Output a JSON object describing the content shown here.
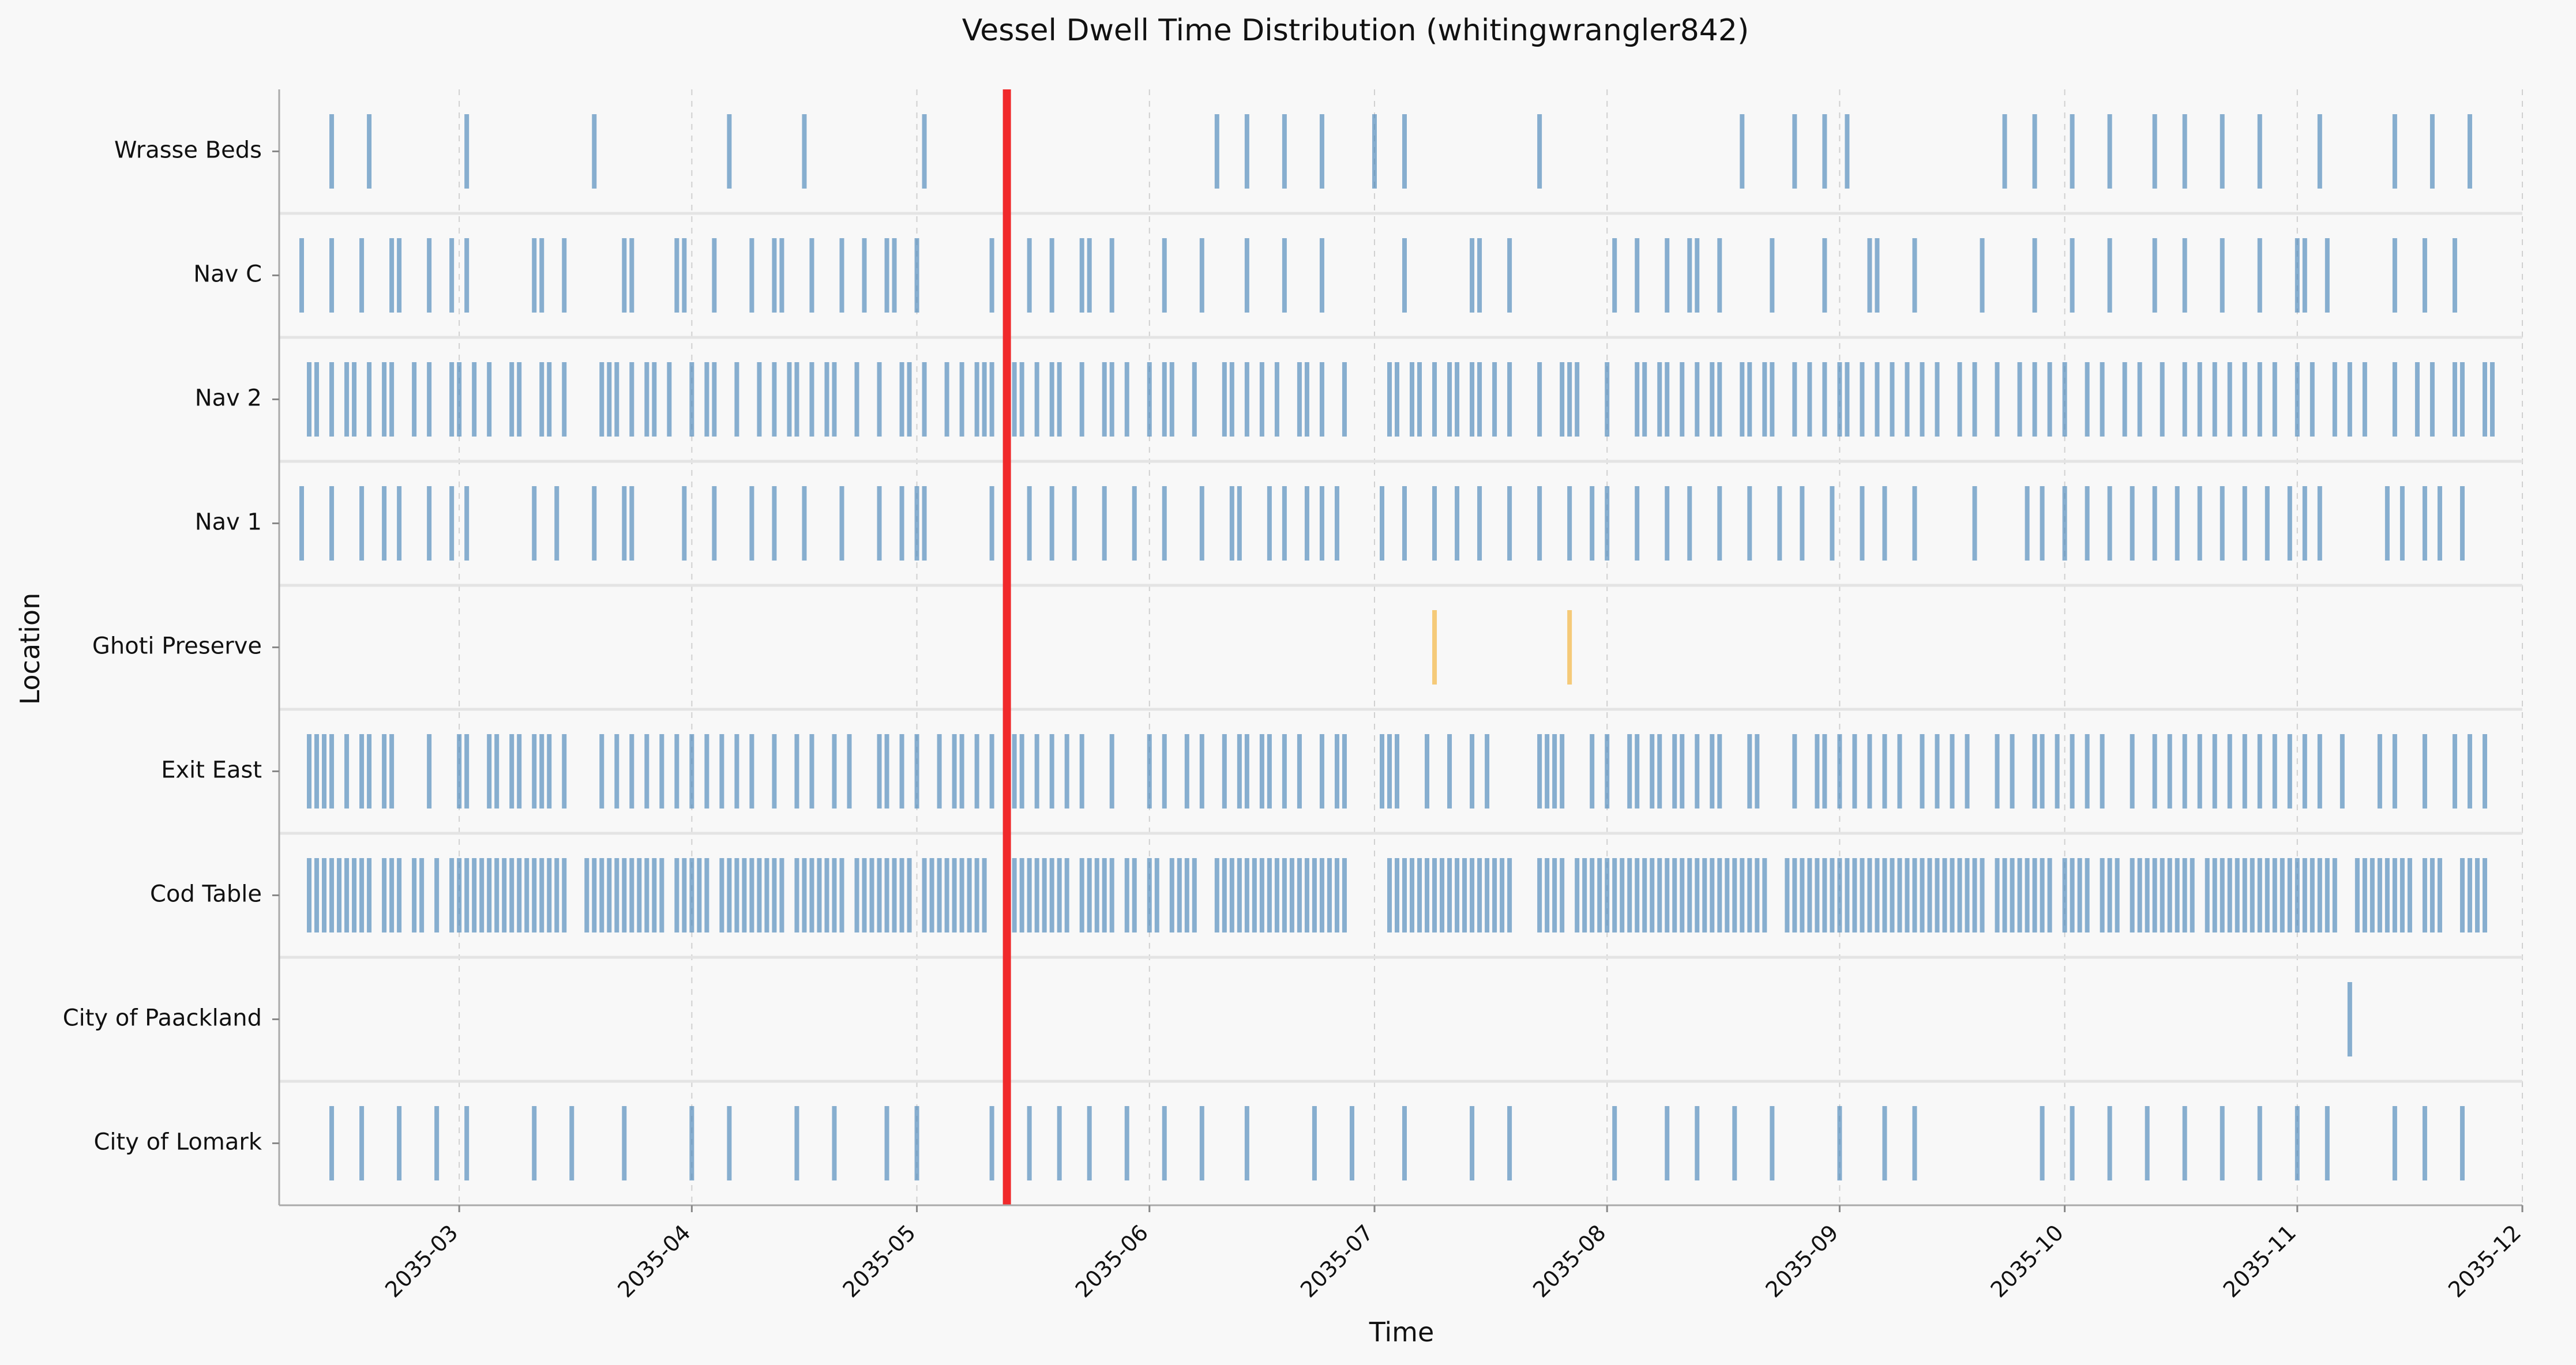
{
  "chart_data": {
    "type": "event-timeline",
    "title": "Vessel Dwell Time Distribution (whitingwrangler842)",
    "xlabel": "Time",
    "ylabel": "Location",
    "xlim": [
      "2035-02-05",
      "2035-12-01"
    ],
    "x_ticks": [
      "2035-03",
      "2035-04",
      "2035-05",
      "2035-06",
      "2035-07",
      "2035-08",
      "2035-09",
      "2035-10",
      "2035-11",
      "2035-12"
    ],
    "grid": "x-dashed",
    "colors": {
      "normal": "#4a86b8",
      "highlight": "#f2b134",
      "marker": "#f0292b"
    },
    "marker_line": {
      "date": "2035-05-13"
    },
    "categories": [
      "Wrasse Beds",
      "Nav C",
      "Nav 2",
      "Nav 1",
      "Ghoti Preserve",
      "Exit East",
      "Cod Table",
      "City of Paackland",
      "City of Lomark"
    ],
    "series": [
      {
        "name": "Wrasse Beds",
        "color": "normal",
        "events": [
          "2035-02-12",
          "2035-02-17",
          "2035-03-02",
          "2035-03-19",
          "2035-04-06",
          "2035-04-16",
          "2035-05-02",
          "2035-06-10",
          "2035-06-14",
          "2035-06-19",
          "2035-06-24",
          "2035-07-01",
          "2035-07-05",
          "2035-07-23",
          "2035-08-19",
          "2035-08-26",
          "2035-08-30",
          "2035-09-02",
          "2035-09-23",
          "2035-09-27",
          "2035-10-02",
          "2035-10-07",
          "2035-10-13",
          "2035-10-17",
          "2035-10-22",
          "2035-10-27",
          "2035-11-04",
          "2035-11-14",
          "2035-11-19",
          "2035-11-24"
        ]
      },
      {
        "name": "Nav C",
        "color": "normal",
        "events": [
          "2035-02-08",
          "2035-02-12",
          "2035-02-16",
          "2035-02-20",
          "2035-02-21",
          "2035-02-25",
          "2035-02-28",
          "2035-03-02",
          "2035-03-11",
          "2035-03-12",
          "2035-03-15",
          "2035-03-23",
          "2035-03-24",
          "2035-03-30",
          "2035-03-31",
          "2035-04-04",
          "2035-04-09",
          "2035-04-12",
          "2035-04-13",
          "2035-04-17",
          "2035-04-21",
          "2035-04-24",
          "2035-04-27",
          "2035-04-28",
          "2035-05-01",
          "2035-05-11",
          "2035-05-16",
          "2035-05-19",
          "2035-05-23",
          "2035-05-24",
          "2035-05-27",
          "2035-06-03",
          "2035-06-08",
          "2035-06-14",
          "2035-06-19",
          "2035-06-24",
          "2035-07-05",
          "2035-07-14",
          "2035-07-15",
          "2035-07-19",
          "2035-08-02",
          "2035-08-05",
          "2035-08-09",
          "2035-08-12",
          "2035-08-13",
          "2035-08-16",
          "2035-08-23",
          "2035-08-30",
          "2035-09-05",
          "2035-09-06",
          "2035-09-11",
          "2035-09-20",
          "2035-09-27",
          "2035-10-02",
          "2035-10-07",
          "2035-10-13",
          "2035-10-17",
          "2035-10-22",
          "2035-10-27",
          "2035-11-01",
          "2035-11-02",
          "2035-11-05",
          "2035-11-14",
          "2035-11-18",
          "2035-11-22"
        ]
      },
      {
        "name": "Nav 2",
        "color": "normal",
        "events": [
          "2035-02-09",
          "2035-02-10",
          "2035-02-12",
          "2035-02-14",
          "2035-02-15",
          "2035-02-17",
          "2035-02-19",
          "2035-02-20",
          "2035-02-23",
          "2035-02-25",
          "2035-02-28",
          "2035-03-01",
          "2035-03-03",
          "2035-03-05",
          "2035-03-08",
          "2035-03-09",
          "2035-03-12",
          "2035-03-13",
          "2035-03-15",
          "2035-03-20",
          "2035-03-21",
          "2035-03-22",
          "2035-03-24",
          "2035-03-26",
          "2035-03-27",
          "2035-03-29",
          "2035-04-01",
          "2035-04-03",
          "2035-04-04",
          "2035-04-07",
          "2035-04-10",
          "2035-04-12",
          "2035-04-14",
          "2035-04-15",
          "2035-04-17",
          "2035-04-19",
          "2035-04-20",
          "2035-04-23",
          "2035-04-26",
          "2035-04-29",
          "2035-04-30",
          "2035-05-02",
          "2035-05-05",
          "2035-05-07",
          "2035-05-09",
          "2035-05-10",
          "2035-05-11",
          "2035-05-14",
          "2035-05-15",
          "2035-05-17",
          "2035-05-19",
          "2035-05-20",
          "2035-05-23",
          "2035-05-26",
          "2035-05-27",
          "2035-05-29",
          "2035-06-01",
          "2035-06-03",
          "2035-06-04",
          "2035-06-07",
          "2035-06-11",
          "2035-06-12",
          "2035-06-14",
          "2035-06-16",
          "2035-06-18",
          "2035-06-21",
          "2035-06-22",
          "2035-06-24",
          "2035-06-27",
          "2035-07-03",
          "2035-07-04",
          "2035-07-06",
          "2035-07-07",
          "2035-07-09",
          "2035-07-11",
          "2035-07-12",
          "2035-07-14",
          "2035-07-15",
          "2035-07-17",
          "2035-07-19",
          "2035-07-23",
          "2035-07-26",
          "2035-07-27",
          "2035-07-28",
          "2035-08-01",
          "2035-08-05",
          "2035-08-06",
          "2035-08-08",
          "2035-08-09",
          "2035-08-11",
          "2035-08-13",
          "2035-08-15",
          "2035-08-16",
          "2035-08-19",
          "2035-08-20",
          "2035-08-22",
          "2035-08-23",
          "2035-08-26",
          "2035-08-28",
          "2035-08-30",
          "2035-09-01",
          "2035-09-02",
          "2035-09-04",
          "2035-09-06",
          "2035-09-08",
          "2035-09-10",
          "2035-09-12",
          "2035-09-14",
          "2035-09-17",
          "2035-09-19",
          "2035-09-22",
          "2035-09-25",
          "2035-09-27",
          "2035-09-29",
          "2035-10-01",
          "2035-10-04",
          "2035-10-06",
          "2035-10-09",
          "2035-10-11",
          "2035-10-14",
          "2035-10-17",
          "2035-10-19",
          "2035-10-21",
          "2035-10-23",
          "2035-10-25",
          "2035-10-27",
          "2035-10-29",
          "2035-11-01",
          "2035-11-03",
          "2035-11-06",
          "2035-11-08",
          "2035-11-10",
          "2035-11-14",
          "2035-11-17",
          "2035-11-19",
          "2035-11-22",
          "2035-11-23",
          "2035-11-26",
          "2035-11-27"
        ]
      },
      {
        "name": "Nav 1",
        "color": "normal",
        "events": [
          "2035-02-08",
          "2035-02-12",
          "2035-02-16",
          "2035-02-19",
          "2035-02-21",
          "2035-02-25",
          "2035-02-28",
          "2035-03-02",
          "2035-03-11",
          "2035-03-14",
          "2035-03-19",
          "2035-03-23",
          "2035-03-24",
          "2035-03-31",
          "2035-04-04",
          "2035-04-09",
          "2035-04-12",
          "2035-04-16",
          "2035-04-21",
          "2035-04-26",
          "2035-04-29",
          "2035-05-01",
          "2035-05-02",
          "2035-05-11",
          "2035-05-13",
          "2035-05-16",
          "2035-05-19",
          "2035-05-22",
          "2035-05-26",
          "2035-05-30",
          "2035-06-03",
          "2035-06-08",
          "2035-06-12",
          "2035-06-13",
          "2035-06-17",
          "2035-06-19",
          "2035-06-22",
          "2035-06-24",
          "2035-06-26",
          "2035-07-02",
          "2035-07-05",
          "2035-07-09",
          "2035-07-12",
          "2035-07-15",
          "2035-07-19",
          "2035-07-23",
          "2035-07-27",
          "2035-07-30",
          "2035-08-01",
          "2035-08-05",
          "2035-08-09",
          "2035-08-12",
          "2035-08-16",
          "2035-08-20",
          "2035-08-24",
          "2035-08-27",
          "2035-08-31",
          "2035-09-04",
          "2035-09-07",
          "2035-09-11",
          "2035-09-19",
          "2035-09-26",
          "2035-09-28",
          "2035-10-01",
          "2035-10-04",
          "2035-10-07",
          "2035-10-10",
          "2035-10-13",
          "2035-10-16",
          "2035-10-19",
          "2035-10-22",
          "2035-10-25",
          "2035-10-28",
          "2035-10-31",
          "2035-11-02",
          "2035-11-04",
          "2035-11-13",
          "2035-11-15",
          "2035-11-18",
          "2035-11-20",
          "2035-11-23"
        ]
      },
      {
        "name": "Ghoti Preserve",
        "color": "highlight",
        "events": [
          "2035-07-09",
          "2035-07-27"
        ]
      },
      {
        "name": "Exit East",
        "color": "normal",
        "events": [
          "2035-02-09",
          "2035-02-10",
          "2035-02-11",
          "2035-02-12",
          "2035-02-14",
          "2035-02-16",
          "2035-02-17",
          "2035-02-19",
          "2035-02-20",
          "2035-02-25",
          "2035-03-01",
          "2035-03-02",
          "2035-03-05",
          "2035-03-06",
          "2035-03-08",
          "2035-03-09",
          "2035-03-11",
          "2035-03-12",
          "2035-03-13",
          "2035-03-15",
          "2035-03-20",
          "2035-03-22",
          "2035-03-24",
          "2035-03-26",
          "2035-03-28",
          "2035-03-30",
          "2035-04-01",
          "2035-04-03",
          "2035-04-05",
          "2035-04-07",
          "2035-04-09",
          "2035-04-12",
          "2035-04-15",
          "2035-04-17",
          "2035-04-20",
          "2035-04-22",
          "2035-04-26",
          "2035-04-27",
          "2035-04-29",
          "2035-05-01",
          "2035-05-04",
          "2035-05-06",
          "2035-05-07",
          "2035-05-09",
          "2035-05-11",
          "2035-05-14",
          "2035-05-15",
          "2035-05-17",
          "2035-05-19",
          "2035-05-21",
          "2035-05-23",
          "2035-05-27",
          "2035-06-01",
          "2035-06-03",
          "2035-06-06",
          "2035-06-08",
          "2035-06-11",
          "2035-06-13",
          "2035-06-14",
          "2035-06-16",
          "2035-06-17",
          "2035-06-19",
          "2035-06-21",
          "2035-06-24",
          "2035-06-26",
          "2035-06-27",
          "2035-07-02",
          "2035-07-03",
          "2035-07-04",
          "2035-07-08",
          "2035-07-11",
          "2035-07-14",
          "2035-07-16",
          "2035-07-23",
          "2035-07-24",
          "2035-07-25",
          "2035-07-26",
          "2035-07-30",
          "2035-08-01",
          "2035-08-04",
          "2035-08-05",
          "2035-08-07",
          "2035-08-08",
          "2035-08-10",
          "2035-08-11",
          "2035-08-13",
          "2035-08-15",
          "2035-08-16",
          "2035-08-20",
          "2035-08-21",
          "2035-08-26",
          "2035-08-29",
          "2035-08-30",
          "2035-09-01",
          "2035-09-03",
          "2035-09-05",
          "2035-09-07",
          "2035-09-09",
          "2035-09-12",
          "2035-09-14",
          "2035-09-16",
          "2035-09-18",
          "2035-09-22",
          "2035-09-24",
          "2035-09-27",
          "2035-09-28",
          "2035-09-30",
          "2035-10-02",
          "2035-10-04",
          "2035-10-06",
          "2035-10-10",
          "2035-10-13",
          "2035-10-15",
          "2035-10-17",
          "2035-10-19",
          "2035-10-21",
          "2035-10-23",
          "2035-10-25",
          "2035-10-27",
          "2035-10-29",
          "2035-10-31",
          "2035-11-02",
          "2035-11-04",
          "2035-11-07",
          "2035-11-12",
          "2035-11-14",
          "2035-11-18",
          "2035-11-22",
          "2035-11-24",
          "2035-11-26"
        ]
      },
      {
        "name": "Cod Table",
        "color": "normal",
        "events": [
          "2035-02-09",
          "2035-02-10",
          "2035-02-11",
          "2035-02-12",
          "2035-02-13",
          "2035-02-14",
          "2035-02-15",
          "2035-02-16",
          "2035-02-17",
          "2035-02-19",
          "2035-02-20",
          "2035-02-21",
          "2035-02-23",
          "2035-02-24",
          "2035-02-26",
          "2035-02-28",
          "2035-03-01",
          "2035-03-02",
          "2035-03-03",
          "2035-03-04",
          "2035-03-05",
          "2035-03-06",
          "2035-03-07",
          "2035-03-08",
          "2035-03-09",
          "2035-03-10",
          "2035-03-11",
          "2035-03-12",
          "2035-03-13",
          "2035-03-14",
          "2035-03-15",
          "2035-03-18",
          "2035-03-19",
          "2035-03-20",
          "2035-03-21",
          "2035-03-22",
          "2035-03-23",
          "2035-03-24",
          "2035-03-25",
          "2035-03-26",
          "2035-03-27",
          "2035-03-28",
          "2035-03-30",
          "2035-03-31",
          "2035-04-01",
          "2035-04-02",
          "2035-04-03",
          "2035-04-05",
          "2035-04-06",
          "2035-04-07",
          "2035-04-08",
          "2035-04-09",
          "2035-04-10",
          "2035-04-11",
          "2035-04-12",
          "2035-04-13",
          "2035-04-15",
          "2035-04-16",
          "2035-04-17",
          "2035-04-18",
          "2035-04-19",
          "2035-04-20",
          "2035-04-21",
          "2035-04-23",
          "2035-04-24",
          "2035-04-25",
          "2035-04-26",
          "2035-04-27",
          "2035-04-28",
          "2035-04-29",
          "2035-04-30",
          "2035-05-02",
          "2035-05-03",
          "2035-05-04",
          "2035-05-05",
          "2035-05-06",
          "2035-05-07",
          "2035-05-08",
          "2035-05-09",
          "2035-05-10",
          "2035-05-14",
          "2035-05-15",
          "2035-05-16",
          "2035-05-17",
          "2035-05-18",
          "2035-05-19",
          "2035-05-20",
          "2035-05-21",
          "2035-05-23",
          "2035-05-24",
          "2035-05-25",
          "2035-05-26",
          "2035-05-27",
          "2035-05-29",
          "2035-05-30",
          "2035-06-01",
          "2035-06-02",
          "2035-06-04",
          "2035-06-05",
          "2035-06-06",
          "2035-06-07",
          "2035-06-10",
          "2035-06-11",
          "2035-06-12",
          "2035-06-13",
          "2035-06-14",
          "2035-06-15",
          "2035-06-16",
          "2035-06-17",
          "2035-06-18",
          "2035-06-19",
          "2035-06-20",
          "2035-06-21",
          "2035-06-22",
          "2035-06-23",
          "2035-06-24",
          "2035-06-25",
          "2035-06-26",
          "2035-06-27",
          "2035-07-03",
          "2035-07-04",
          "2035-07-05",
          "2035-07-06",
          "2035-07-07",
          "2035-07-08",
          "2035-07-09",
          "2035-07-10",
          "2035-07-11",
          "2035-07-12",
          "2035-07-13",
          "2035-07-14",
          "2035-07-15",
          "2035-07-16",
          "2035-07-17",
          "2035-07-18",
          "2035-07-19",
          "2035-07-23",
          "2035-07-24",
          "2035-07-25",
          "2035-07-26",
          "2035-07-28",
          "2035-07-29",
          "2035-07-30",
          "2035-07-31",
          "2035-08-01",
          "2035-08-02",
          "2035-08-03",
          "2035-08-04",
          "2035-08-05",
          "2035-08-06",
          "2035-08-07",
          "2035-08-08",
          "2035-08-09",
          "2035-08-10",
          "2035-08-11",
          "2035-08-12",
          "2035-08-13",
          "2035-08-14",
          "2035-08-15",
          "2035-08-16",
          "2035-08-17",
          "2035-08-18",
          "2035-08-19",
          "2035-08-20",
          "2035-08-21",
          "2035-08-22",
          "2035-08-25",
          "2035-08-26",
          "2035-08-27",
          "2035-08-28",
          "2035-08-29",
          "2035-08-30",
          "2035-08-31",
          "2035-09-01",
          "2035-09-02",
          "2035-09-03",
          "2035-09-04",
          "2035-09-05",
          "2035-09-06",
          "2035-09-07",
          "2035-09-08",
          "2035-09-09",
          "2035-09-10",
          "2035-09-11",
          "2035-09-12",
          "2035-09-13",
          "2035-09-14",
          "2035-09-15",
          "2035-09-16",
          "2035-09-17",
          "2035-09-18",
          "2035-09-19",
          "2035-09-20",
          "2035-09-22",
          "2035-09-23",
          "2035-09-24",
          "2035-09-25",
          "2035-09-26",
          "2035-09-27",
          "2035-09-28",
          "2035-09-29",
          "2035-10-01",
          "2035-10-02",
          "2035-10-03",
          "2035-10-04",
          "2035-10-06",
          "2035-10-07",
          "2035-10-08",
          "2035-10-10",
          "2035-10-11",
          "2035-10-12",
          "2035-10-13",
          "2035-10-14",
          "2035-10-15",
          "2035-10-16",
          "2035-10-17",
          "2035-10-18",
          "2035-10-20",
          "2035-10-21",
          "2035-10-22",
          "2035-10-23",
          "2035-10-24",
          "2035-10-25",
          "2035-10-26",
          "2035-10-27",
          "2035-10-28",
          "2035-10-29",
          "2035-10-30",
          "2035-10-31",
          "2035-11-01",
          "2035-11-02",
          "2035-11-03",
          "2035-11-04",
          "2035-11-05",
          "2035-11-06",
          "2035-11-09",
          "2035-11-10",
          "2035-11-11",
          "2035-11-12",
          "2035-11-13",
          "2035-11-14",
          "2035-11-15",
          "2035-11-16",
          "2035-11-18",
          "2035-11-19",
          "2035-11-20",
          "2035-11-23",
          "2035-11-24",
          "2035-11-25",
          "2035-11-26"
        ]
      },
      {
        "name": "City of Paackland",
        "color": "normal",
        "events": [
          "2035-11-08"
        ]
      },
      {
        "name": "City of Lomark",
        "color": "normal",
        "events": [
          "2035-02-12",
          "2035-02-16",
          "2035-02-21",
          "2035-02-26",
          "2035-03-02",
          "2035-03-11",
          "2035-03-16",
          "2035-03-23",
          "2035-04-01",
          "2035-04-06",
          "2035-04-15",
          "2035-04-20",
          "2035-04-27",
          "2035-05-01",
          "2035-05-11",
          "2035-05-16",
          "2035-05-20",
          "2035-05-24",
          "2035-05-29",
          "2035-06-03",
          "2035-06-08",
          "2035-06-14",
          "2035-06-23",
          "2035-06-28",
          "2035-07-05",
          "2035-07-14",
          "2035-07-19",
          "2035-08-02",
          "2035-08-09",
          "2035-08-13",
          "2035-08-18",
          "2035-08-23",
          "2035-09-01",
          "2035-09-07",
          "2035-09-11",
          "2035-09-28",
          "2035-10-02",
          "2035-10-07",
          "2035-10-12",
          "2035-10-17",
          "2035-10-22",
          "2035-10-27",
          "2035-11-01",
          "2035-11-05",
          "2035-11-14",
          "2035-11-18",
          "2035-11-23"
        ]
      }
    ]
  }
}
